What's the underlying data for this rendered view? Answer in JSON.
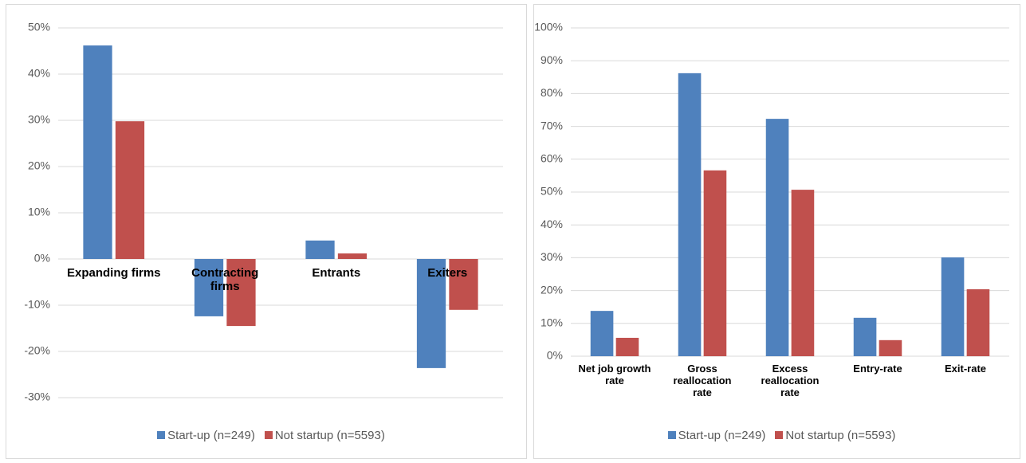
{
  "chart_data": [
    {
      "type": "bar",
      "categories": [
        "Expanding firms",
        "Contracting firms",
        "Entrants",
        "Exiters"
      ],
      "series": [
        {
          "name": "Start-up (n=249)",
          "color": "#4f81bd",
          "values": [
            46.2,
            -12.4,
            4.0,
            -23.6
          ]
        },
        {
          "name": "Not startup (n=5593)",
          "color": "#c0504d",
          "values": [
            29.8,
            -14.5,
            1.2,
            -11.0
          ]
        }
      ],
      "ylim": [
        -30,
        50
      ],
      "yticks": [
        {
          "value": -30,
          "label": "-30%"
        },
        {
          "value": -20,
          "label": "-20%"
        },
        {
          "value": -10,
          "label": "-10%"
        },
        {
          "value": 0,
          "label": "0%"
        },
        {
          "value": 10,
          "label": "10%"
        },
        {
          "value": 20,
          "label": "20%"
        },
        {
          "value": 30,
          "label": "30%"
        },
        {
          "value": 40,
          "label": "40%"
        },
        {
          "value": 50,
          "label": "50%"
        }
      ],
      "grid": true,
      "legend": "bottom"
    },
    {
      "type": "bar",
      "categories": [
        "Net job growth rate",
        "Gross reallocation rate",
        "Excess reallocation rate",
        "Entry-rate",
        "Exit-rate"
      ],
      "series": [
        {
          "name": "Start-up (n=249)",
          "color": "#4f81bd",
          "values": [
            13.8,
            86.2,
            72.3,
            11.7,
            30.1
          ]
        },
        {
          "name": "Not startup (n=5593)",
          "color": "#c0504d",
          "values": [
            5.6,
            56.6,
            50.7,
            4.9,
            20.4
          ]
        }
      ],
      "ylim": [
        0,
        100
      ],
      "yticks": [
        {
          "value": 0,
          "label": "0%"
        },
        {
          "value": 10,
          "label": "10%"
        },
        {
          "value": 20,
          "label": "20%"
        },
        {
          "value": 30,
          "label": "30%"
        },
        {
          "value": 40,
          "label": "40%"
        },
        {
          "value": 50,
          "label": "50%"
        },
        {
          "value": 60,
          "label": "60%"
        },
        {
          "value": 70,
          "label": "70%"
        },
        {
          "value": 80,
          "label": "80%"
        },
        {
          "value": 90,
          "label": "90%"
        },
        {
          "value": 100,
          "label": "100%"
        }
      ],
      "grid": true,
      "legend": "bottom"
    }
  ]
}
